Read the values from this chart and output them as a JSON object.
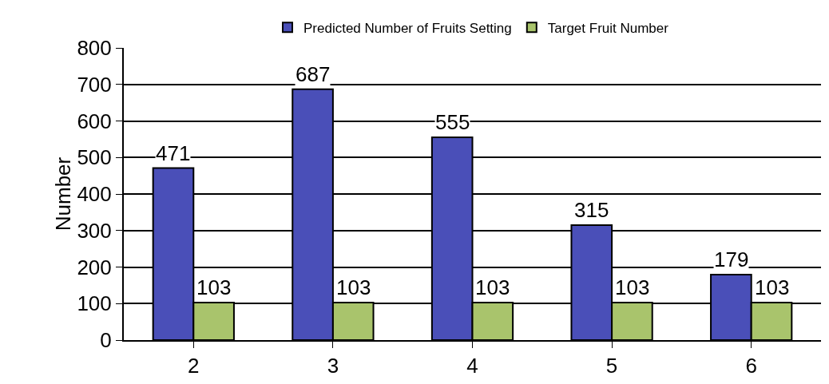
{
  "chart_data": {
    "type": "bar",
    "ylabel": "Number",
    "categories": [
      "2",
      "3",
      "4",
      "5",
      "6"
    ],
    "series": [
      {
        "name": "Predicted Number of Fruits Setting",
        "color": "#4a4fb8",
        "values": [
          471,
          687,
          555,
          315,
          179
        ]
      },
      {
        "name": "Target Fruit Number",
        "color": "#a9c46c",
        "values": [
          103,
          103,
          103,
          103,
          103
        ]
      }
    ],
    "ylim": [
      0,
      800
    ],
    "yticks": [
      0,
      100,
      200,
      300,
      400,
      500,
      600,
      700,
      800
    ],
    "grid": "y",
    "legend": "top",
    "data_labels": true
  }
}
